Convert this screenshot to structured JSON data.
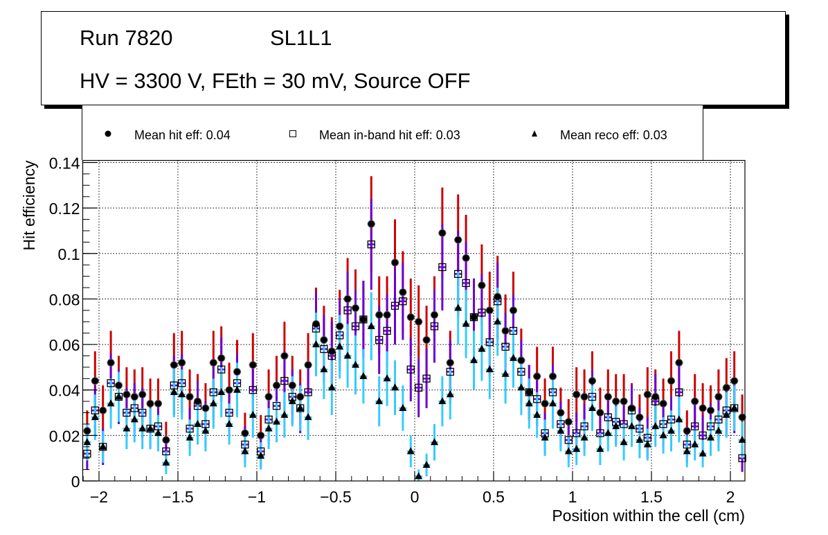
{
  "title": {
    "run": "Run 7820",
    "layer": "SL1L1",
    "conditions": "HV = 3300 V, FEth = 30 mV, Source OFF"
  },
  "legend": [
    {
      "marker": "filled-circle",
      "label": "Mean hit  eff: 0.04"
    },
    {
      "marker": "open-square",
      "label": "Mean in-band hit eff: 0.03"
    },
    {
      "marker": "filled-triangle",
      "label": "Mean reco eff: 0.03"
    }
  ],
  "colors": {
    "hit_error": "#cc0000",
    "inband_error": "#6a00d0",
    "reco_error": "#33ccff",
    "marker": "#000000"
  },
  "chart_data": {
    "type": "scatter",
    "title": "",
    "xlabel": "Position within the cell (cm)",
    "ylabel": "Hit efficiency",
    "xlim": [
      -2.1,
      2.1
    ],
    "ylim": [
      0,
      0.14
    ],
    "grid": true,
    "legend_position": "top",
    "x_ticks": [
      "−2",
      "−1.5",
      "−1",
      "−0.5",
      "0",
      "0.5",
      "1",
      "1.5",
      "2"
    ],
    "x_tick_values": [
      -2,
      -1.5,
      -1,
      -0.5,
      0,
      0.5,
      1,
      1.5,
      2
    ],
    "y_ticks": [
      "0",
      "0.02",
      "0.04",
      "0.06",
      "0.08",
      "0.1",
      "0.12",
      "0.14"
    ],
    "y_tick_values": [
      0,
      0.02,
      0.04,
      0.06,
      0.08,
      0.1,
      0.12,
      0.14
    ],
    "x_start": -2.075,
    "x_step": 0.05,
    "series": [
      {
        "name": "Mean hit  eff: 0.04",
        "marker": "filled-circle",
        "values": [
          0.022,
          0.044,
          0.031,
          0.052,
          0.042,
          0.038,
          0.037,
          0.038,
          0.034,
          0.034,
          0.018,
          0.051,
          0.052,
          0.037,
          0.035,
          0.032,
          0.052,
          0.054,
          0.04,
          0.048,
          0.021,
          0.051,
          0.02,
          0.037,
          0.042,
          0.055,
          0.042,
          0.037,
          0.051,
          0.069,
          0.062,
          0.057,
          0.068,
          0.08,
          0.076,
          0.071,
          0.113,
          0.073,
          0.073,
          0.096,
          0.083,
          0.072,
          0.07,
          0.062,
          0.073,
          0.109,
          0.052,
          0.106,
          0.098,
          0.072,
          0.086,
          0.075,
          0.081,
          0.066,
          0.075,
          0.053,
          0.039,
          0.046,
          0.034,
          0.046,
          0.03,
          0.026,
          0.038,
          0.037,
          0.044,
          0.03,
          0.037,
          0.035,
          0.035,
          0.032,
          0.028,
          0.038,
          0.037,
          0.034,
          0.044,
          0.052,
          0.022,
          0.035,
          0.032,
          0.031,
          0.037,
          0.041,
          0.044,
          0.028
        ],
        "errors": [
          0.009,
          0.013,
          0.011,
          0.014,
          0.013,
          0.012,
          0.012,
          0.012,
          0.011,
          0.011,
          0.008,
          0.014,
          0.014,
          0.012,
          0.012,
          0.011,
          0.014,
          0.014,
          0.012,
          0.014,
          0.009,
          0.014,
          0.009,
          0.012,
          0.013,
          0.015,
          0.013,
          0.012,
          0.014,
          0.016,
          0.015,
          0.015,
          0.016,
          0.018,
          0.017,
          0.017,
          0.021,
          0.017,
          0.017,
          0.019,
          0.018,
          0.017,
          0.016,
          0.015,
          0.017,
          0.02,
          0.014,
          0.02,
          0.019,
          0.017,
          0.018,
          0.017,
          0.018,
          0.016,
          0.017,
          0.014,
          0.012,
          0.013,
          0.011,
          0.013,
          0.011,
          0.01,
          0.012,
          0.012,
          0.013,
          0.011,
          0.012,
          0.012,
          0.012,
          0.011,
          0.01,
          0.012,
          0.012,
          0.011,
          0.013,
          0.014,
          0.009,
          0.012,
          0.011,
          0.011,
          0.012,
          0.013,
          0.013,
          0.01
        ]
      },
      {
        "name": "Mean in-band hit eff: 0.03",
        "marker": "open-square",
        "values": [
          0.012,
          0.031,
          0.015,
          0.043,
          0.037,
          0.03,
          0.032,
          0.03,
          0.023,
          0.024,
          0.013,
          0.042,
          0.043,
          0.023,
          0.033,
          0.025,
          0.039,
          0.049,
          0.03,
          0.043,
          0.016,
          0.04,
          0.013,
          0.027,
          0.033,
          0.044,
          0.037,
          0.032,
          0.039,
          0.067,
          0.058,
          0.055,
          0.064,
          0.075,
          0.068,
          0.071,
          0.104,
          0.062,
          0.066,
          0.077,
          0.079,
          0.049,
          0.041,
          0.045,
          0.068,
          0.094,
          0.048,
          0.091,
          0.087,
          0.072,
          0.074,
          0.061,
          0.079,
          0.059,
          0.066,
          0.048,
          0.039,
          0.036,
          0.021,
          0.039,
          0.025,
          0.018,
          0.021,
          0.024,
          0.037,
          0.021,
          0.028,
          0.026,
          0.025,
          0.031,
          0.023,
          0.019,
          0.035,
          0.025,
          0.027,
          0.039,
          0.016,
          0.024,
          0.02,
          0.024,
          0.027,
          0.031,
          0.032,
          0.01
        ],
        "errors": [
          0.007,
          0.011,
          0.008,
          0.013,
          0.012,
          0.011,
          0.011,
          0.011,
          0.009,
          0.01,
          0.007,
          0.013,
          0.013,
          0.009,
          0.011,
          0.01,
          0.012,
          0.014,
          0.011,
          0.013,
          0.008,
          0.012,
          0.007,
          0.01,
          0.011,
          0.013,
          0.012,
          0.011,
          0.012,
          0.016,
          0.015,
          0.015,
          0.016,
          0.017,
          0.016,
          0.017,
          0.02,
          0.015,
          0.016,
          0.017,
          0.017,
          0.014,
          0.013,
          0.013,
          0.016,
          0.019,
          0.014,
          0.019,
          0.018,
          0.017,
          0.017,
          0.015,
          0.017,
          0.015,
          0.016,
          0.014,
          0.012,
          0.012,
          0.009,
          0.012,
          0.01,
          0.008,
          0.009,
          0.01,
          0.012,
          0.009,
          0.01,
          0.01,
          0.01,
          0.011,
          0.009,
          0.009,
          0.012,
          0.01,
          0.01,
          0.012,
          0.008,
          0.01,
          0.009,
          0.01,
          0.01,
          0.011,
          0.011,
          0.006
        ]
      },
      {
        "name": "Mean reco eff: 0.03",
        "marker": "filled-triangle",
        "values": [
          0.017,
          0.028,
          0.015,
          0.034,
          0.037,
          0.023,
          0.027,
          0.023,
          0.023,
          0.021,
          0.008,
          0.039,
          0.038,
          0.019,
          0.025,
          0.022,
          0.034,
          0.039,
          0.025,
          0.04,
          0.013,
          0.029,
          0.011,
          0.023,
          0.026,
          0.029,
          0.035,
          0.032,
          0.028,
          0.06,
          0.049,
          0.041,
          0.059,
          0.055,
          0.051,
          0.046,
          0.068,
          0.035,
          0.045,
          0.041,
          0.032,
          0.013,
          0.002,
          0.007,
          0.017,
          0.035,
          0.038,
          0.076,
          0.069,
          0.053,
          0.058,
          0.049,
          0.07,
          0.047,
          0.054,
          0.041,
          0.034,
          0.029,
          0.019,
          0.034,
          0.022,
          0.013,
          0.014,
          0.019,
          0.032,
          0.014,
          0.021,
          0.024,
          0.017,
          0.024,
          0.018,
          0.016,
          0.024,
          0.02,
          0.022,
          0.027,
          0.013,
          0.016,
          0.012,
          0.019,
          0.022,
          0.029,
          0.032,
          0.018
        ],
        "errors": [
          0.008,
          0.01,
          0.007,
          0.011,
          0.011,
          0.009,
          0.01,
          0.009,
          0.009,
          0.008,
          0.005,
          0.011,
          0.011,
          0.008,
          0.009,
          0.009,
          0.011,
          0.011,
          0.009,
          0.012,
          0.007,
          0.01,
          0.006,
          0.009,
          0.009,
          0.01,
          0.011,
          0.01,
          0.01,
          0.014,
          0.013,
          0.012,
          0.014,
          0.014,
          0.013,
          0.012,
          0.015,
          0.011,
          0.012,
          0.012,
          0.01,
          0.007,
          0.003,
          0.005,
          0.008,
          0.011,
          0.011,
          0.016,
          0.015,
          0.013,
          0.014,
          0.013,
          0.015,
          0.013,
          0.013,
          0.012,
          0.011,
          0.01,
          0.008,
          0.011,
          0.009,
          0.007,
          0.007,
          0.008,
          0.01,
          0.007,
          0.008,
          0.009,
          0.008,
          0.009,
          0.008,
          0.007,
          0.009,
          0.008,
          0.009,
          0.01,
          0.007,
          0.007,
          0.006,
          0.008,
          0.009,
          0.01,
          0.01,
          0.008
        ]
      }
    ]
  }
}
